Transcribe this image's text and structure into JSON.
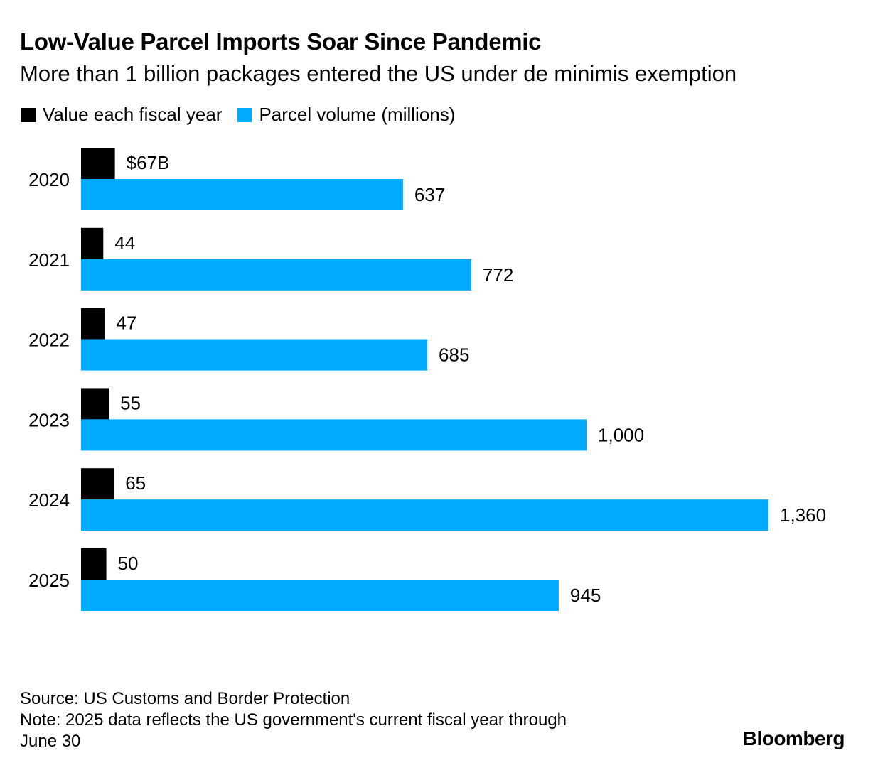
{
  "title": "Low-Value Parcel Imports Soar Since Pandemic",
  "subtitle": "More than 1 billion packages entered the US under de minimis exemption",
  "legend": [
    {
      "label": "Value each fiscal year",
      "color": "#000000"
    },
    {
      "label": "Parcel volume (millions)",
      "color": "#00aaff"
    }
  ],
  "chart_data": {
    "type": "bar",
    "orientation": "horizontal",
    "categories": [
      "2020",
      "2021",
      "2022",
      "2023",
      "2024",
      "2025"
    ],
    "series": [
      {
        "name": "Value each fiscal year",
        "color": "#000000",
        "values": [
          67,
          44,
          47,
          55,
          65,
          50
        ],
        "labels": [
          "$67B",
          "44",
          "47",
          "55",
          "65",
          "50"
        ]
      },
      {
        "name": "Parcel volume (millions)",
        "color": "#00aaff",
        "values": [
          637,
          772,
          685,
          1000,
          1360,
          945
        ],
        "labels": [
          "637",
          "772",
          "685",
          "1,000",
          "1,360",
          "945"
        ]
      }
    ],
    "grid": false,
    "legend_position": "top-left"
  },
  "footer": {
    "source": "Source: US Customs and Border Protection",
    "note_line1": "Note: 2025 data reflects the US government's current fiscal year through",
    "note_line2": "June 30",
    "brand": "Bloomberg"
  }
}
